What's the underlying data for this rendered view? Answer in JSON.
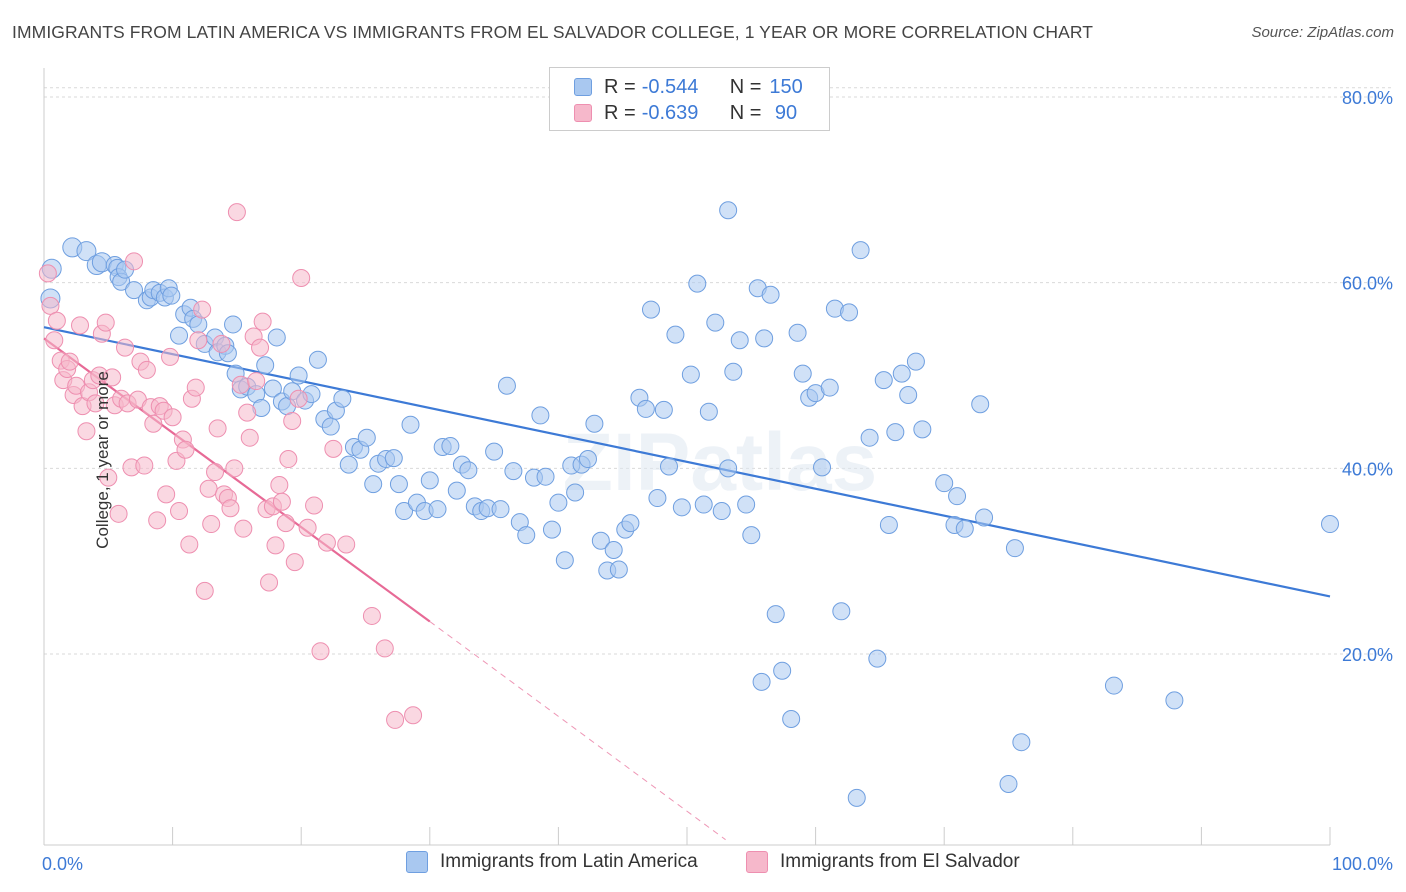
{
  "title": "IMMIGRANTS FROM LATIN AMERICA VS IMMIGRANTS FROM EL SALVADOR COLLEGE, 1 YEAR OR MORE CORRELATION CHART",
  "source": "Source: ZipAtlas.com",
  "watermark": "ZIPatlas",
  "legend": {
    "rows": [
      {
        "r_label": "R = ",
        "r_value": "-0.544",
        "n_label": "N = ",
        "n_value": "150",
        "color": "#a9c8f0"
      },
      {
        "r_label": "R = ",
        "r_value": "-0.639",
        "n_label": "N = ",
        "n_value": " 90",
        "color": "#f6b8cb"
      }
    ]
  },
  "chart_data": {
    "type": "scatter",
    "title": "IMMIGRANTS FROM LATIN AMERICA VS IMMIGRANTS FROM EL SALVADOR COLLEGE, 1 YEAR OR MORE CORRELATION CHART",
    "xlabel": "",
    "ylabel": "College, 1 year or more",
    "xlim": [
      0,
      100
    ],
    "ylim": [
      0,
      83
    ],
    "x_tick_labels": [
      "0.0%",
      "100.0%"
    ],
    "y_ticks": [
      20,
      40,
      60,
      80
    ],
    "y_tick_labels": [
      "20.0%",
      "40.0%",
      "60.0%",
      "80.0%"
    ],
    "grid": true,
    "series": [
      {
        "name": "Immigrants from Latin America",
        "color": "#3d7ad6",
        "fill": "#a9c8f0",
        "trend": {
          "x": [
            0,
            100
          ],
          "y": [
            55.2,
            26.2
          ],
          "dashed_to": null
        },
        "points": [
          [
            0.5,
            58.3
          ],
          [
            0.6,
            61.5
          ],
          [
            2.2,
            63.8
          ],
          [
            3.3,
            63.4
          ],
          [
            4.1,
            61.9
          ],
          [
            4.5,
            62.2
          ],
          [
            5.5,
            61.9
          ],
          [
            5.7,
            61.6
          ],
          [
            5.8,
            60.6
          ],
          [
            6.0,
            60.1
          ],
          [
            6.3,
            61.4
          ],
          [
            7.0,
            59.2
          ],
          [
            8.0,
            58.1
          ],
          [
            8.3,
            58.4
          ],
          [
            8.5,
            59.2
          ],
          [
            9.0,
            58.9
          ],
          [
            9.4,
            58.4
          ],
          [
            9.7,
            59.4
          ],
          [
            9.9,
            58.6
          ],
          [
            10.5,
            54.3
          ],
          [
            10.9,
            56.6
          ],
          [
            11.4,
            57.3
          ],
          [
            11.6,
            56.1
          ],
          [
            12.0,
            55.5
          ],
          [
            12.5,
            53.4
          ],
          [
            13.3,
            54.1
          ],
          [
            13.5,
            52.5
          ],
          [
            14.1,
            53.2
          ],
          [
            14.3,
            52.4
          ],
          [
            14.7,
            55.5
          ],
          [
            14.9,
            50.2
          ],
          [
            15.3,
            48.5
          ],
          [
            15.8,
            48.8
          ],
          [
            16.5,
            48.0
          ],
          [
            16.9,
            46.5
          ],
          [
            17.2,
            51.1
          ],
          [
            17.8,
            48.6
          ],
          [
            18.1,
            54.1
          ],
          [
            18.5,
            47.2
          ],
          [
            18.9,
            46.7
          ],
          [
            19.3,
            48.3
          ],
          [
            19.8,
            50.0
          ],
          [
            20.3,
            47.3
          ],
          [
            20.8,
            48.0
          ],
          [
            21.3,
            51.7
          ],
          [
            21.8,
            45.3
          ],
          [
            22.3,
            44.5
          ],
          [
            22.7,
            46.2
          ],
          [
            23.2,
            47.5
          ],
          [
            23.7,
            40.4
          ],
          [
            24.1,
            42.3
          ],
          [
            24.6,
            42.0
          ],
          [
            25.1,
            43.3
          ],
          [
            25.6,
            38.3
          ],
          [
            26.0,
            40.5
          ],
          [
            26.6,
            41.0
          ],
          [
            27.2,
            41.1
          ],
          [
            27.6,
            38.3
          ],
          [
            28.0,
            35.4
          ],
          [
            28.5,
            44.7
          ],
          [
            29.0,
            36.3
          ],
          [
            29.6,
            35.4
          ],
          [
            30.0,
            38.7
          ],
          [
            30.6,
            35.6
          ],
          [
            31.0,
            42.3
          ],
          [
            31.6,
            42.4
          ],
          [
            32.1,
            37.6
          ],
          [
            32.5,
            40.4
          ],
          [
            33.0,
            39.8
          ],
          [
            33.5,
            35.9
          ],
          [
            34.0,
            35.4
          ],
          [
            34.5,
            35.7
          ],
          [
            35.0,
            41.8
          ],
          [
            35.5,
            35.6
          ],
          [
            36.0,
            48.9
          ],
          [
            36.5,
            39.7
          ],
          [
            37.0,
            34.2
          ],
          [
            37.5,
            32.8
          ],
          [
            38.1,
            39.0
          ],
          [
            38.6,
            45.7
          ],
          [
            39.0,
            39.1
          ],
          [
            39.5,
            33.4
          ],
          [
            40.0,
            36.3
          ],
          [
            40.5,
            30.1
          ],
          [
            41.0,
            40.3
          ],
          [
            41.3,
            37.4
          ],
          [
            41.8,
            40.4
          ],
          [
            42.3,
            41.0
          ],
          [
            42.8,
            44.8
          ],
          [
            43.3,
            32.2
          ],
          [
            43.8,
            29.0
          ],
          [
            44.3,
            31.2
          ],
          [
            44.7,
            29.1
          ],
          [
            45.2,
            33.4
          ],
          [
            45.6,
            34.1
          ],
          [
            46.3,
            47.6
          ],
          [
            46.8,
            46.4
          ],
          [
            47.2,
            57.1
          ],
          [
            47.7,
            36.8
          ],
          [
            48.2,
            46.3
          ],
          [
            48.6,
            40.2
          ],
          [
            49.1,
            54.4
          ],
          [
            49.6,
            35.8
          ],
          [
            50.3,
            50.1
          ],
          [
            50.8,
            59.9
          ],
          [
            51.3,
            36.1
          ],
          [
            51.7,
            46.1
          ],
          [
            52.2,
            55.7
          ],
          [
            52.7,
            35.4
          ],
          [
            53.2,
            40.0
          ],
          [
            53.2,
            67.8
          ],
          [
            53.6,
            50.4
          ],
          [
            54.1,
            53.8
          ],
          [
            54.6,
            36.1
          ],
          [
            55.0,
            32.8
          ],
          [
            55.5,
            59.4
          ],
          [
            55.8,
            17.0
          ],
          [
            56.0,
            54.0
          ],
          [
            56.5,
            58.7
          ],
          [
            56.9,
            24.3
          ],
          [
            57.4,
            18.2
          ],
          [
            58.1,
            13.0
          ],
          [
            58.6,
            54.6
          ],
          [
            59.0,
            50.2
          ],
          [
            59.5,
            47.6
          ],
          [
            60.0,
            48.1
          ],
          [
            60.5,
            40.1
          ],
          [
            61.1,
            48.7
          ],
          [
            61.5,
            57.2
          ],
          [
            62.0,
            24.6
          ],
          [
            62.6,
            56.8
          ],
          [
            63.2,
            4.5
          ],
          [
            63.5,
            63.5
          ],
          [
            64.2,
            43.3
          ],
          [
            64.8,
            19.5
          ],
          [
            65.3,
            49.5
          ],
          [
            65.7,
            33.9
          ],
          [
            66.2,
            43.9
          ],
          [
            66.7,
            50.2
          ],
          [
            67.2,
            47.9
          ],
          [
            67.8,
            51.5
          ],
          [
            68.3,
            44.2
          ],
          [
            70.0,
            38.4
          ],
          [
            70.8,
            33.9
          ],
          [
            71.0,
            37.0
          ],
          [
            71.6,
            33.5
          ],
          [
            72.8,
            46.9
          ],
          [
            73.1,
            34.7
          ],
          [
            75.0,
            6.0
          ],
          [
            75.5,
            31.4
          ],
          [
            76.0,
            10.5
          ],
          [
            83.2,
            16.6
          ],
          [
            87.9,
            15.0
          ],
          [
            100.0,
            34.0
          ]
        ]
      },
      {
        "name": "Immigrants from El Salvador",
        "color": "#e76a96",
        "fill": "#f6b8cb",
        "trend": {
          "x": [
            0,
            30
          ],
          "y": [
            54.0,
            23.5
          ],
          "dashed_to": [
            53,
            0
          ]
        },
        "points": [
          [
            0.3,
            61.0
          ],
          [
            0.5,
            57.5
          ],
          [
            0.8,
            53.8
          ],
          [
            1.0,
            55.9
          ],
          [
            1.3,
            51.6
          ],
          [
            1.5,
            49.5
          ],
          [
            1.8,
            50.7
          ],
          [
            2.0,
            51.5
          ],
          [
            2.3,
            47.9
          ],
          [
            2.5,
            48.9
          ],
          [
            2.8,
            55.4
          ],
          [
            3.0,
            46.7
          ],
          [
            3.3,
            44.0
          ],
          [
            3.5,
            48.2
          ],
          [
            3.8,
            49.5
          ],
          [
            4.0,
            47.0
          ],
          [
            4.3,
            50.0
          ],
          [
            4.5,
            54.5
          ],
          [
            4.8,
            55.7
          ],
          [
            5.0,
            39.0
          ],
          [
            5.3,
            49.8
          ],
          [
            5.5,
            46.8
          ],
          [
            5.8,
            35.1
          ],
          [
            6.0,
            47.5
          ],
          [
            6.3,
            53.0
          ],
          [
            6.5,
            47.0
          ],
          [
            6.8,
            40.1
          ],
          [
            7.0,
            62.3
          ],
          [
            7.3,
            47.4
          ],
          [
            7.5,
            51.5
          ],
          [
            7.8,
            40.3
          ],
          [
            8.0,
            50.6
          ],
          [
            8.3,
            46.6
          ],
          [
            8.5,
            44.8
          ],
          [
            8.8,
            34.4
          ],
          [
            9.0,
            46.7
          ],
          [
            9.3,
            46.2
          ],
          [
            9.5,
            37.2
          ],
          [
            9.8,
            52.0
          ],
          [
            10.0,
            45.5
          ],
          [
            10.3,
            40.8
          ],
          [
            10.5,
            35.4
          ],
          [
            10.8,
            43.1
          ],
          [
            11.0,
            42.0
          ],
          [
            11.3,
            31.8
          ],
          [
            11.5,
            47.5
          ],
          [
            11.8,
            48.7
          ],
          [
            12.0,
            53.8
          ],
          [
            12.3,
            57.1
          ],
          [
            12.5,
            26.8
          ],
          [
            12.8,
            37.8
          ],
          [
            13.0,
            34.0
          ],
          [
            13.3,
            39.6
          ],
          [
            13.5,
            44.3
          ],
          [
            13.8,
            53.4
          ],
          [
            14.0,
            37.2
          ],
          [
            14.3,
            36.8
          ],
          [
            14.5,
            35.7
          ],
          [
            14.8,
            40.0
          ],
          [
            15.0,
            67.6
          ],
          [
            15.3,
            49.0
          ],
          [
            15.5,
            33.5
          ],
          [
            15.8,
            46.0
          ],
          [
            16.0,
            43.3
          ],
          [
            16.3,
            54.2
          ],
          [
            16.5,
            49.4
          ],
          [
            16.8,
            53.0
          ],
          [
            17.0,
            55.8
          ],
          [
            17.3,
            35.6
          ],
          [
            17.5,
            27.7
          ],
          [
            17.8,
            35.9
          ],
          [
            18.0,
            31.7
          ],
          [
            18.3,
            38.2
          ],
          [
            18.5,
            36.4
          ],
          [
            18.8,
            34.1
          ],
          [
            19.0,
            41.0
          ],
          [
            19.3,
            45.1
          ],
          [
            19.5,
            29.9
          ],
          [
            19.8,
            47.5
          ],
          [
            20.0,
            60.5
          ],
          [
            20.5,
            33.6
          ],
          [
            21.0,
            36.0
          ],
          [
            21.5,
            20.3
          ],
          [
            22.0,
            32.0
          ],
          [
            22.5,
            42.1
          ],
          [
            23.5,
            31.8
          ],
          [
            25.5,
            24.1
          ],
          [
            26.5,
            20.6
          ],
          [
            27.3,
            12.9
          ],
          [
            28.7,
            13.4
          ]
        ]
      }
    ]
  },
  "bottom_legend": [
    {
      "label": "Immigrants from Latin America",
      "color": "#a9c8f0",
      "border": "#6f9fe0"
    },
    {
      "label": "Immigrants from El Salvador",
      "color": "#f6b8cb",
      "border": "#ee8fb0"
    }
  ]
}
